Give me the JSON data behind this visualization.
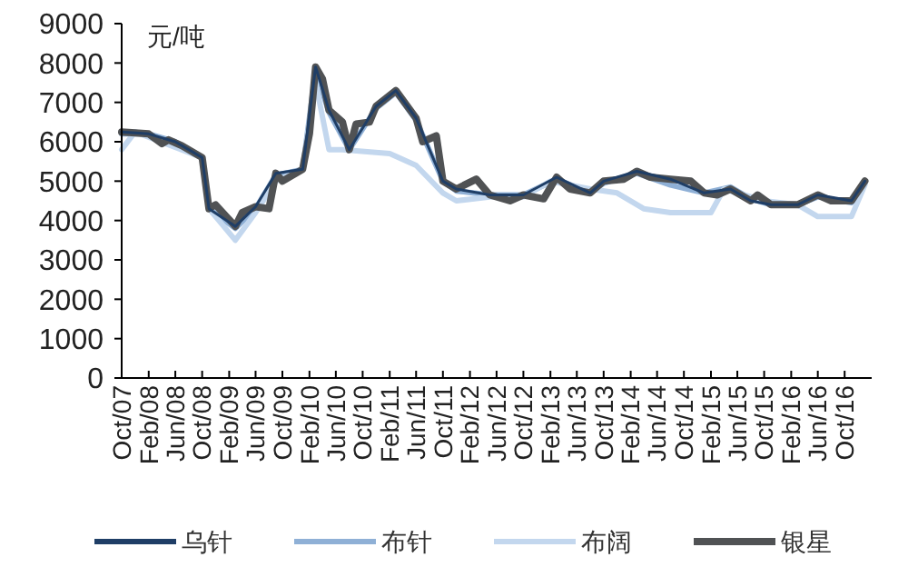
{
  "chart_data": {
    "type": "line",
    "ylabel": "元/吨",
    "ylim": [
      0,
      9000
    ],
    "yticks": [
      0,
      1000,
      2000,
      3000,
      4000,
      5000,
      6000,
      7000,
      8000,
      9000
    ],
    "xlim": [
      "2007-10",
      "2017-02"
    ],
    "xticks": [
      {
        "value": "2007-10",
        "label": "Oct/07"
      },
      {
        "value": "2008-02",
        "label": "Feb/08"
      },
      {
        "value": "2008-06",
        "label": "Jun/08"
      },
      {
        "value": "2008-10",
        "label": "Oct/08"
      },
      {
        "value": "2009-02",
        "label": "Feb/09"
      },
      {
        "value": "2009-06",
        "label": "Jun/09"
      },
      {
        "value": "2009-10",
        "label": "Oct/09"
      },
      {
        "value": "2010-02",
        "label": "Feb/10"
      },
      {
        "value": "2010-06",
        "label": "Jun/10"
      },
      {
        "value": "2010-10",
        "label": "Oct/10"
      },
      {
        "value": "2011-02",
        "label": "Feb/11"
      },
      {
        "value": "2011-06",
        "label": "Jun/11"
      },
      {
        "value": "2011-10",
        "label": "Oct/11"
      },
      {
        "value": "2012-02",
        "label": "Feb/12"
      },
      {
        "value": "2012-06",
        "label": "Jun/12"
      },
      {
        "value": "2012-10",
        "label": "Oct/12"
      },
      {
        "value": "2013-02",
        "label": "Feb/13"
      },
      {
        "value": "2013-06",
        "label": "Jun/13"
      },
      {
        "value": "2013-10",
        "label": "Oct/13"
      },
      {
        "value": "2014-02",
        "label": "Feb/14"
      },
      {
        "value": "2014-06",
        "label": "Jun/14"
      },
      {
        "value": "2014-10",
        "label": "Oct/14"
      },
      {
        "value": "2015-02",
        "label": "Feb/15"
      },
      {
        "value": "2015-06",
        "label": "Jun/15"
      },
      {
        "value": "2015-10",
        "label": "Oct/15"
      },
      {
        "value": "2016-02",
        "label": "Feb/16"
      },
      {
        "value": "2016-06",
        "label": "Jun/16"
      },
      {
        "value": "2016-10",
        "label": "Oct/16"
      }
    ],
    "grid": false,
    "legend": "bottom",
    "marker": "none",
    "line_style": "solid",
    "series": [
      {
        "name": "乌针",
        "color": "#1f3e66",
        "x": [
          "2007-10",
          "2008-02",
          "2008-06",
          "2008-10",
          "2008-11",
          "2009-03",
          "2009-06",
          "2009-09",
          "2010-01",
          "2010-03",
          "2010-05",
          "2010-08",
          "2010-12",
          "2011-03",
          "2011-06",
          "2011-10",
          "2011-12",
          "2012-05",
          "2012-10",
          "2013-03",
          "2013-08",
          "2013-10",
          "2014-03",
          "2014-08",
          "2015-01",
          "2015-05",
          "2015-08",
          "2015-11",
          "2016-03",
          "2016-06",
          "2016-11",
          "2017-01"
        ],
        "values": [
          6250,
          6200,
          6000,
          5600,
          4300,
          3850,
          4350,
          5200,
          5300,
          7900,
          6800,
          5800,
          6900,
          7300,
          6600,
          5000,
          4800,
          4650,
          4650,
          5100,
          4700,
          5000,
          5250,
          5050,
          4700,
          4800,
          4500,
          4400,
          4400,
          4650,
          4500,
          5000
        ]
      },
      {
        "name": "布针",
        "color": "#8fb0d6",
        "x": [
          "2007-10",
          "2008-02",
          "2008-06",
          "2008-10",
          "2008-11",
          "2009-03",
          "2009-06",
          "2009-09",
          "2010-01",
          "2010-03",
          "2010-05",
          "2010-08",
          "2010-12",
          "2011-03",
          "2011-06",
          "2011-10",
          "2011-12",
          "2012-05",
          "2012-10",
          "2013-03",
          "2013-08",
          "2013-10",
          "2014-03",
          "2014-08",
          "2015-01",
          "2015-05",
          "2015-08",
          "2015-11",
          "2016-03",
          "2016-06",
          "2016-11",
          "2017-01"
        ],
        "values": [
          6200,
          6200,
          6000,
          5600,
          4300,
          3800,
          4300,
          5150,
          5300,
          7800,
          6750,
          5800,
          6850,
          7250,
          6550,
          5000,
          4750,
          4650,
          4650,
          5050,
          4700,
          4950,
          5200,
          4900,
          4700,
          4850,
          4550,
          4400,
          4400,
          4600,
          4450,
          4950
        ]
      },
      {
        "name": "布阔",
        "color": "#c3d7ee",
        "x": [
          "2007-10",
          "2007-12",
          "2008-10",
          "2008-11",
          "2009-03",
          "2009-06",
          "2009-09",
          "2010-01",
          "2010-03",
          "2010-05",
          "2010-07",
          "2011-02",
          "2011-06",
          "2011-10",
          "2011-12",
          "2012-05",
          "2012-10",
          "2013-02",
          "2013-08",
          "2013-12",
          "2014-04",
          "2014-08",
          "2015-02",
          "2015-04",
          "2015-10",
          "2016-03",
          "2016-06",
          "2016-11",
          "2017-01"
        ],
        "values": [
          5800,
          6250,
          5600,
          4300,
          3500,
          4200,
          5000,
          5300,
          7500,
          5800,
          5800,
          5700,
          5400,
          4700,
          4500,
          4600,
          4600,
          5000,
          4800,
          4700,
          4300,
          4200,
          4200,
          4800,
          4500,
          4400,
          4100,
          4100,
          4900
        ]
      },
      {
        "name": "银星",
        "color": "#505254",
        "x": [
          "2007-10",
          "2008-02",
          "2008-04",
          "2008-05",
          "2008-07",
          "2008-10",
          "2008-11",
          "2008-12",
          "2009-03",
          "2009-04",
          "2009-06",
          "2009-08",
          "2009-09",
          "2009-10",
          "2010-01",
          "2010-02",
          "2010-03",
          "2010-04",
          "2010-05",
          "2010-07",
          "2010-08",
          "2010-09",
          "2010-11",
          "2010-12",
          "2011-03",
          "2011-06",
          "2011-07",
          "2011-09",
          "2011-10",
          "2011-12",
          "2012-03",
          "2012-05",
          "2012-08",
          "2012-10",
          "2013-01",
          "2013-03",
          "2013-05",
          "2013-08",
          "2013-10",
          "2014-01",
          "2014-03",
          "2014-05",
          "2014-08",
          "2014-11",
          "2015-01",
          "2015-03",
          "2015-05",
          "2015-08",
          "2015-09",
          "2015-11",
          "2016-03",
          "2016-06",
          "2016-08",
          "2016-11",
          "2017-01"
        ],
        "values": [
          6250,
          6200,
          5950,
          6050,
          5900,
          5600,
          4300,
          4400,
          3850,
          4200,
          4350,
          4300,
          5200,
          5000,
          5300,
          6200,
          7900,
          7600,
          6800,
          6500,
          5800,
          6450,
          6500,
          6900,
          7300,
          6600,
          6000,
          6150,
          5000,
          4800,
          5050,
          4650,
          4500,
          4650,
          4550,
          5100,
          4800,
          4700,
          5000,
          5050,
          5250,
          5100,
          5050,
          5000,
          4700,
          4650,
          4800,
          4500,
          4650,
          4400,
          4400,
          4650,
          4500,
          4500,
          5000
        ]
      }
    ]
  }
}
